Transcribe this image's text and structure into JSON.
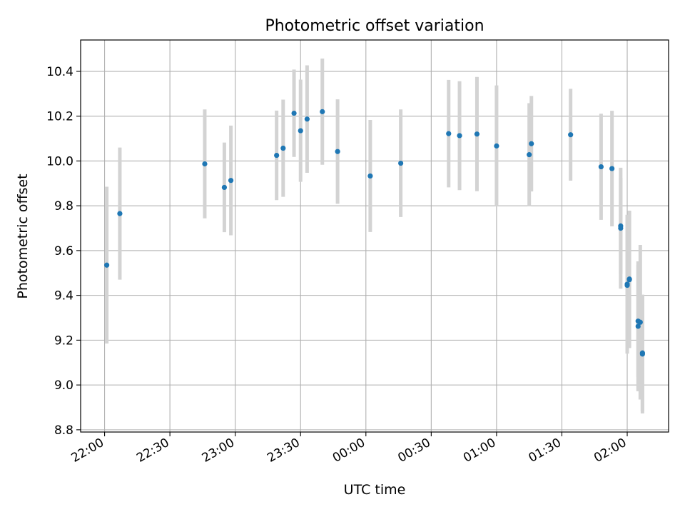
{
  "chart_data": {
    "type": "scatter",
    "title": "Photometric offset variation",
    "xlabel": "UTC time",
    "ylabel": "Photometric offset",
    "x_tick_labels": [
      "22:00",
      "22:30",
      "23:00",
      "23:30",
      "00:00",
      "00:30",
      "01:00",
      "01:30",
      "02:00"
    ],
    "y_tick_labels": [
      "8.8",
      "9.0",
      "9.2",
      "9.4",
      "9.6",
      "9.8",
      "10.0",
      "10.2",
      "10.4"
    ],
    "y_ticks": [
      8.8,
      9.0,
      9.2,
      9.4,
      9.6,
      9.8,
      10.0,
      10.2,
      10.4
    ],
    "xlim": [
      "21:49",
      "02:19"
    ],
    "ylim": [
      8.79,
      10.54
    ],
    "grid": true,
    "colors": {
      "points": "#1f77b4",
      "errorbars": "#d3d3d3",
      "grid": "#b0b0b0"
    },
    "points": [
      {
        "x": "22:01",
        "y": 9.535,
        "err": 0.35
      },
      {
        "x": "22:07",
        "y": 9.765,
        "err": 0.295
      },
      {
        "x": "22:46",
        "y": 9.987,
        "err": 0.243
      },
      {
        "x": "22:55",
        "y": 9.882,
        "err": 0.2
      },
      {
        "x": "22:58",
        "y": 9.913,
        "err": 0.245
      },
      {
        "x": "23:19",
        "y": 10.025,
        "err": 0.2
      },
      {
        "x": "23:22",
        "y": 10.057,
        "err": 0.217
      },
      {
        "x": "23:27",
        "y": 10.213,
        "err": 0.195
      },
      {
        "x": "23:30",
        "y": 10.135,
        "err": 0.228
      },
      {
        "x": "23:33",
        "y": 10.187,
        "err": 0.24
      },
      {
        "x": "23:40",
        "y": 10.22,
        "err": 0.237
      },
      {
        "x": "23:47",
        "y": 10.042,
        "err": 0.233
      },
      {
        "x": "00:02",
        "y": 9.933,
        "err": 0.25
      },
      {
        "x": "00:16",
        "y": 9.99,
        "err": 0.24
      },
      {
        "x": "00:38",
        "y": 10.122,
        "err": 0.24
      },
      {
        "x": "00:43",
        "y": 10.113,
        "err": 0.243
      },
      {
        "x": "00:51",
        "y": 10.12,
        "err": 0.255
      },
      {
        "x": "01:00",
        "y": 10.067,
        "err": 0.27
      },
      {
        "x": "01:15",
        "y": 10.028,
        "err": 0.23
      },
      {
        "x": "01:16",
        "y": 10.077,
        "err": 0.213
      },
      {
        "x": "01:34",
        "y": 10.117,
        "err": 0.205
      },
      {
        "x": "01:48",
        "y": 9.974,
        "err": 0.237
      },
      {
        "x": "01:53",
        "y": 9.966,
        "err": 0.258
      },
      {
        "x": "01:57",
        "y": 9.71,
        "err": 0.215
      },
      {
        "x": "01:57",
        "y": 9.7,
        "err": 0.27
      },
      {
        "x": "02:00",
        "y": 9.45,
        "err": 0.31
      },
      {
        "x": "02:00",
        "y": 9.445,
        "err": 0.27
      },
      {
        "x": "02:01",
        "y": 9.473,
        "err": 0.305
      },
      {
        "x": "02:01",
        "y": 9.47,
        "err": 0.305
      },
      {
        "x": "02:05",
        "y": 9.285,
        "err": 0.25
      },
      {
        "x": "02:05",
        "y": 9.262,
        "err": 0.29
      },
      {
        "x": "02:06",
        "y": 9.28,
        "err": 0.345
      },
      {
        "x": "02:07",
        "y": 9.143,
        "err": 0.26
      },
      {
        "x": "02:07",
        "y": 9.138,
        "err": 0.265
      }
    ]
  }
}
